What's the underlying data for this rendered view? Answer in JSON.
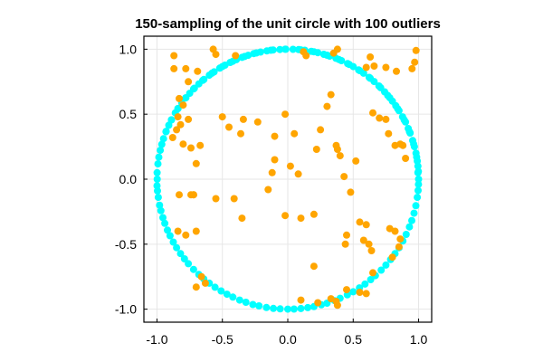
{
  "chart_data": {
    "type": "scatter",
    "title": "150-sampling of the unit circle with 100 outliers",
    "xlabel": "",
    "ylabel": "",
    "xlim": [
      -1.1,
      1.1
    ],
    "ylim": [
      -1.1,
      1.1
    ],
    "xticks": [
      -1.0,
      -0.5,
      0.0,
      0.5,
      1.0
    ],
    "yticks": [
      -1.0,
      -0.5,
      0.0,
      0.5,
      1.0
    ],
    "xtick_labels": [
      "-1.0",
      "-0.5",
      "0.0",
      "0.5",
      "1.0"
    ],
    "ytick_labels": [
      "-1.0",
      "-0.5",
      "0.0",
      "0.5",
      "1.0"
    ],
    "grid": true,
    "legend": "none",
    "series": [
      {
        "color": "#00ffff",
        "points": [
          [
            1.0,
            0.0
          ],
          [
            0.995,
            0.1
          ],
          [
            0.98,
            0.2
          ],
          [
            0.955,
            0.297
          ],
          [
            0.921,
            0.39
          ],
          [
            0.877,
            0.48
          ],
          [
            0.825,
            0.565
          ],
          [
            0.764,
            0.645
          ],
          [
            0.697,
            0.717
          ],
          [
            0.622,
            0.783
          ],
          [
            0.542,
            0.84
          ],
          [
            0.457,
            0.889
          ],
          [
            0.368,
            0.93
          ],
          [
            0.275,
            0.961
          ],
          [
            0.18,
            0.984
          ],
          [
            0.083,
            0.997
          ],
          [
            -0.015,
            1.0
          ],
          [
            -0.112,
            0.994
          ],
          [
            -0.208,
            0.978
          ],
          [
            -0.302,
            0.953
          ],
          [
            -0.393,
            0.92
          ],
          [
            -0.48,
            0.877
          ],
          [
            -0.563,
            0.826
          ],
          [
            -0.641,
            0.767
          ],
          [
            -0.714,
            0.7
          ],
          [
            -0.78,
            0.626
          ],
          [
            -0.839,
            0.544
          ],
          [
            -0.889,
            0.457
          ],
          [
            -0.931,
            0.365
          ],
          [
            -0.963,
            0.268
          ],
          [
            -0.986,
            0.169
          ],
          [
            -0.999,
            0.05
          ],
          [
            -1.0,
            -0.05
          ],
          [
            -0.99,
            -0.14
          ],
          [
            -0.97,
            -0.242
          ],
          [
            -0.94,
            -0.34
          ],
          [
            -0.9,
            -0.435
          ],
          [
            -0.85,
            -0.527
          ],
          [
            -0.79,
            -0.613
          ],
          [
            -0.72,
            -0.694
          ],
          [
            -0.642,
            -0.767
          ],
          [
            -0.556,
            -0.831
          ],
          [
            -0.465,
            -0.885
          ],
          [
            -0.368,
            -0.93
          ],
          [
            -0.267,
            -0.964
          ],
          [
            -0.163,
            -0.987
          ],
          [
            -0.058,
            -0.998
          ],
          [
            0.048,
            -0.999
          ],
          [
            0.153,
            -0.988
          ],
          [
            0.257,
            -0.966
          ],
          [
            0.358,
            -0.934
          ],
          [
            0.455,
            -0.89
          ],
          [
            0.548,
            -0.836
          ],
          [
            0.634,
            -0.773
          ],
          [
            0.714,
            -0.7
          ],
          [
            0.786,
            -0.618
          ],
          [
            0.85,
            -0.527
          ],
          [
            0.905,
            -0.425
          ],
          [
            0.948,
            -0.318
          ],
          [
            0.979,
            -0.204
          ],
          [
            0.996,
            -0.087
          ],
          [
            0.995,
            0.05
          ],
          [
            0.99,
            0.14
          ],
          [
            0.968,
            0.25
          ],
          [
            0.935,
            0.355
          ],
          [
            0.9,
            0.44
          ],
          [
            0.85,
            0.527
          ],
          [
            0.8,
            0.6
          ],
          [
            0.74,
            0.672
          ],
          [
            0.66,
            0.751
          ],
          [
            0.58,
            0.815
          ],
          [
            0.5,
            0.866
          ],
          [
            0.41,
            0.912
          ],
          [
            0.32,
            0.947
          ],
          [
            0.23,
            0.973
          ],
          [
            0.13,
            0.992
          ],
          [
            0.04,
            0.999
          ],
          [
            -0.06,
            0.998
          ],
          [
            -0.16,
            0.987
          ],
          [
            -0.26,
            0.966
          ],
          [
            -0.35,
            0.937
          ],
          [
            -0.44,
            0.898
          ],
          [
            -0.52,
            0.854
          ],
          [
            -0.6,
            0.8
          ],
          [
            -0.68,
            0.733
          ],
          [
            -0.75,
            0.661
          ],
          [
            -0.81,
            0.586
          ],
          [
            -0.86,
            0.51
          ],
          [
            -0.91,
            0.415
          ],
          [
            -0.95,
            0.312
          ],
          [
            -0.975,
            0.222
          ],
          [
            -0.993,
            0.118
          ],
          [
            -0.998,
            0.0
          ],
          [
            -0.996,
            -0.09
          ],
          [
            -0.98,
            -0.2
          ],
          [
            -0.955,
            -0.296
          ],
          [
            -0.92,
            -0.392
          ],
          [
            -0.875,
            -0.484
          ],
          [
            -0.82,
            -0.572
          ],
          [
            -0.76,
            -0.65
          ],
          [
            -0.68,
            -0.733
          ],
          [
            -0.6,
            -0.8
          ],
          [
            -0.51,
            -0.86
          ],
          [
            -0.42,
            -0.907
          ],
          [
            -0.32,
            -0.947
          ],
          [
            -0.22,
            -0.975
          ],
          [
            -0.11,
            -0.994
          ],
          [
            0.0,
            -1.0
          ],
          [
            0.1,
            -0.995
          ],
          [
            0.2,
            -0.98
          ],
          [
            0.3,
            -0.954
          ],
          [
            0.4,
            -0.916
          ],
          [
            0.5,
            -0.866
          ],
          [
            0.59,
            -0.807
          ],
          [
            0.67,
            -0.742
          ],
          [
            0.75,
            -0.661
          ],
          [
            0.82,
            -0.572
          ],
          [
            0.88,
            -0.475
          ],
          [
            0.93,
            -0.367
          ],
          [
            0.965,
            -0.262
          ],
          [
            0.99,
            -0.14
          ],
          [
            0.999,
            -0.04
          ],
          [
            0.998,
            0.06
          ],
          [
            0.985,
            0.17
          ],
          [
            0.962,
            0.27
          ],
          [
            0.93,
            0.366
          ],
          [
            0.89,
            0.456
          ],
          [
            0.84,
            0.542
          ],
          [
            0.78,
            0.626
          ],
          [
            0.71,
            0.704
          ],
          [
            0.63,
            0.776
          ],
          [
            0.55,
            0.835
          ],
          [
            0.47,
            0.883
          ],
          [
            0.39,
            0.921
          ],
          [
            0.3,
            0.954
          ],
          [
            0.2,
            0.98
          ],
          [
            0.1,
            0.995
          ],
          [
            -0.02,
            1.0
          ],
          [
            -0.13,
            0.992
          ],
          [
            -0.24,
            0.971
          ],
          [
            -0.33,
            0.944
          ],
          [
            -0.42,
            0.907
          ],
          [
            -0.5,
            0.866
          ],
          [
            -0.58,
            0.815
          ],
          [
            -0.65,
            0.76
          ],
          [
            -0.72,
            0.694
          ],
          [
            -0.78,
            0.626
          ],
          [
            -0.84,
            0.543
          ],
          [
            -0.89,
            0.456
          ],
          [
            -0.93,
            0.368
          ]
        ]
      },
      {
        "color": "#ffa500",
        "points": [
          [
            -0.87,
            0.85
          ],
          [
            -0.78,
            0.85
          ],
          [
            -0.76,
            0.75
          ],
          [
            -0.69,
            0.83
          ],
          [
            -0.88,
            0.32
          ],
          [
            -0.8,
            0.57
          ],
          [
            -0.76,
            0.46
          ],
          [
            -0.67,
            0.26
          ],
          [
            -0.74,
            0.24
          ],
          [
            -0.7,
            0.12
          ],
          [
            -0.83,
            0.62
          ],
          [
            -0.84,
            0.48
          ],
          [
            -0.82,
            0.42
          ],
          [
            -0.85,
            0.38
          ],
          [
            -0.8,
            0.27
          ],
          [
            -0.83,
            -0.12
          ],
          [
            -0.84,
            -0.4
          ],
          [
            -0.74,
            -0.12
          ],
          [
            -0.72,
            -0.12
          ],
          [
            -0.7,
            -0.4
          ],
          [
            -0.78,
            -0.43
          ],
          [
            -0.72,
            -0.12
          ],
          [
            -0.63,
            -0.8
          ],
          [
            -0.7,
            -0.83
          ],
          [
            -0.66,
            -0.75
          ],
          [
            -0.45,
            0.4
          ],
          [
            -0.5,
            0.48
          ],
          [
            -0.36,
            0.35
          ],
          [
            -0.34,
            0.46
          ],
          [
            -0.23,
            0.44
          ],
          [
            -0.41,
            -0.15
          ],
          [
            -0.35,
            -0.3
          ],
          [
            -0.1,
            0.33
          ],
          [
            -0.02,
            0.5
          ],
          [
            0.05,
            0.35
          ],
          [
            -0.12,
            0.05
          ],
          [
            -0.15,
            -0.08
          ],
          [
            -0.1,
            0.15
          ],
          [
            0.02,
            0.1
          ],
          [
            0.08,
            0.04
          ],
          [
            -0.02,
            -0.28
          ],
          [
            0.2,
            -0.27
          ],
          [
            0.1,
            -0.3
          ],
          [
            0.22,
            0.23
          ],
          [
            0.25,
            0.38
          ],
          [
            0.3,
            0.56
          ],
          [
            0.33,
            0.65
          ],
          [
            0.37,
            0.26
          ],
          [
            0.38,
            0.23
          ],
          [
            0.4,
            0.18
          ],
          [
            0.43,
            0.02
          ],
          [
            0.44,
            -0.5
          ],
          [
            0.45,
            -0.43
          ],
          [
            0.48,
            -0.1
          ],
          [
            0.52,
            0.14
          ],
          [
            0.55,
            -0.33
          ],
          [
            0.58,
            -0.47
          ],
          [
            0.6,
            -0.35
          ],
          [
            0.62,
            -0.5
          ],
          [
            0.64,
            -0.55
          ],
          [
            0.65,
            0.51
          ],
          [
            0.7,
            0.47
          ],
          [
            0.75,
            0.46
          ],
          [
            0.77,
            0.35
          ],
          [
            0.82,
            0.26
          ],
          [
            0.86,
            0.27
          ],
          [
            0.88,
            0.26
          ],
          [
            0.9,
            0.16
          ],
          [
            0.78,
            -0.38
          ],
          [
            0.82,
            -0.4
          ],
          [
            0.86,
            -0.46
          ],
          [
            0.85,
            -0.52
          ],
          [
            0.8,
            -0.6
          ],
          [
            0.65,
            -0.72
          ],
          [
            0.55,
            -0.87
          ],
          [
            0.6,
            -0.88
          ],
          [
            0.45,
            -0.85
          ],
          [
            0.33,
            -0.92
          ],
          [
            0.37,
            -0.94
          ],
          [
            0.1,
            -0.93
          ],
          [
            0.2,
            -0.67
          ],
          [
            0.23,
            -0.95
          ],
          [
            0.38,
            -0.97
          ],
          [
            0.35,
            0.97
          ],
          [
            0.38,
            1.0
          ],
          [
            0.63,
            0.94
          ],
          [
            0.66,
            0.87
          ],
          [
            0.75,
            0.86
          ],
          [
            0.83,
            0.83
          ],
          [
            0.95,
            0.85
          ],
          [
            0.98,
            0.99
          ],
          [
            0.97,
            0.9
          ],
          [
            0.12,
            0.98
          ],
          [
            0.6,
            0.86
          ],
          [
            -0.57,
            1.0
          ],
          [
            -0.87,
            0.95
          ],
          [
            -0.4,
            0.95
          ],
          [
            -0.55,
            -0.15
          ],
          [
            -0.55,
            0.96
          ],
          [
            0.14,
            0.95
          ]
        ]
      }
    ]
  }
}
